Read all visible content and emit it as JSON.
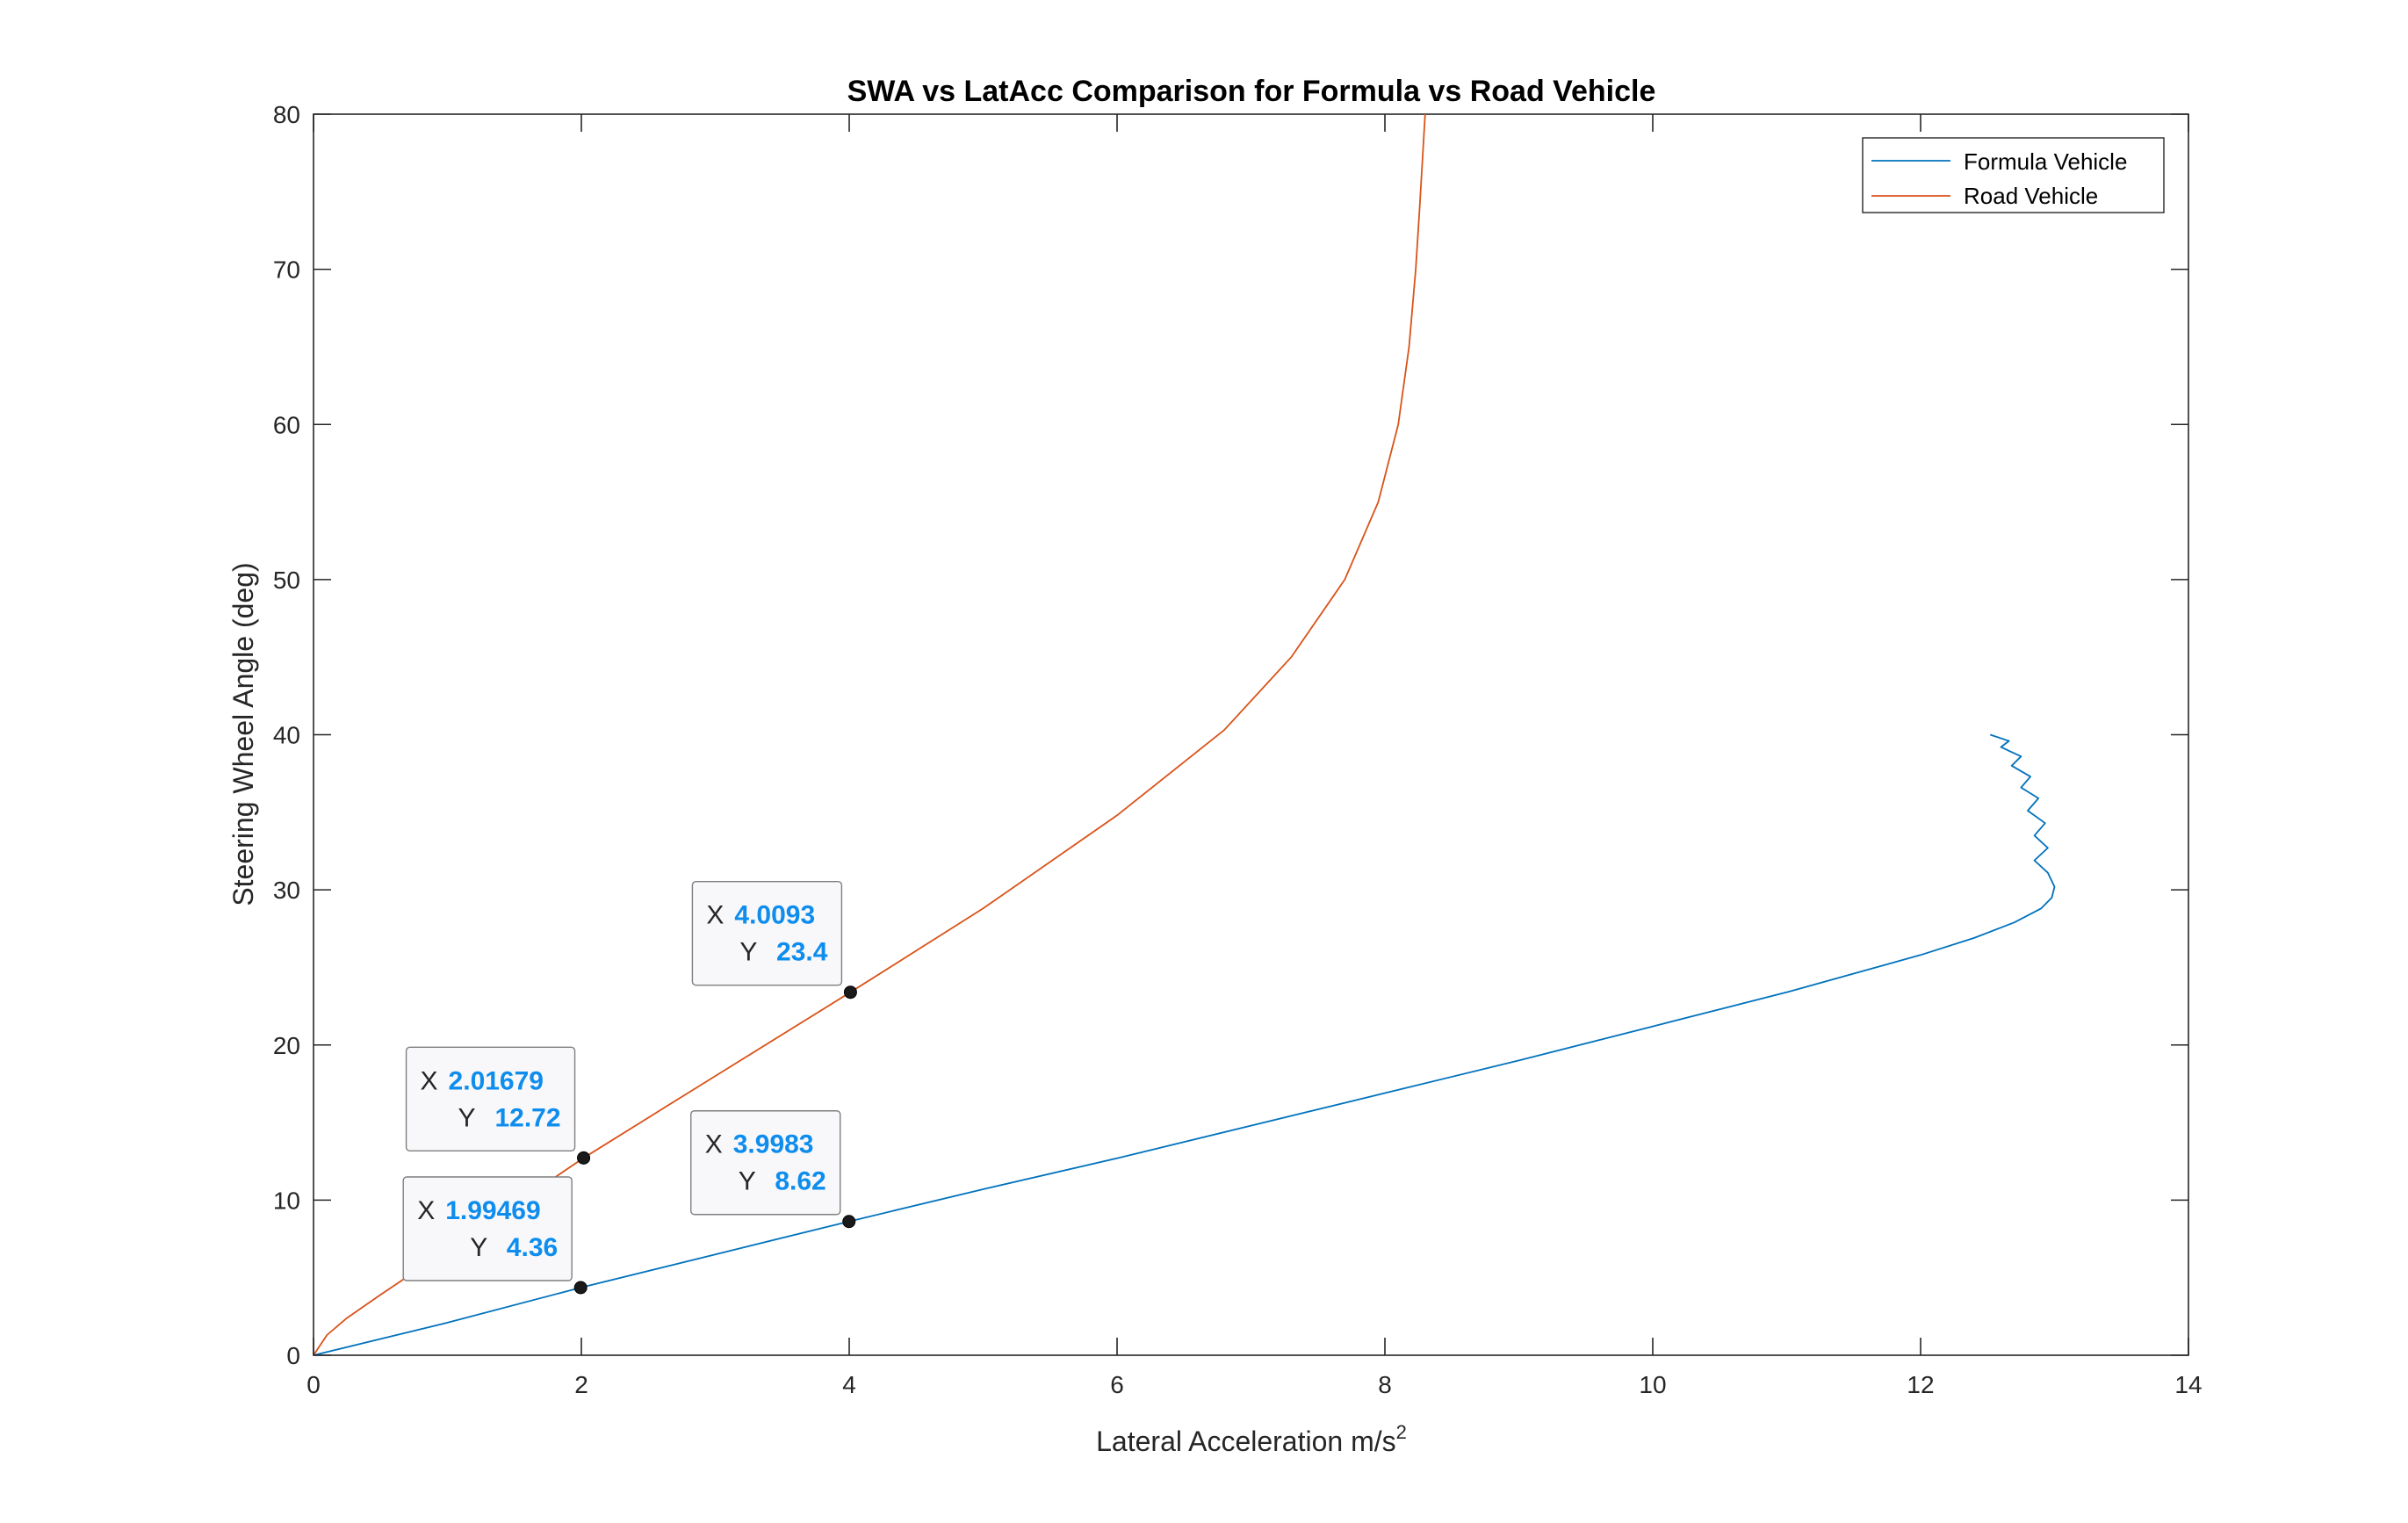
{
  "chart_data": {
    "type": "line",
    "title": "SWA vs LatAcc Comparison for Formula vs Road Vehicle",
    "xlabel": "Lateral Acceleration m/s",
    "xlabel_superscript": "2",
    "ylabel": "Steering Wheel Angle (deg)",
    "xlim": [
      0,
      14
    ],
    "ylim": [
      0,
      80
    ],
    "x_ticks": [
      0,
      2,
      4,
      6,
      8,
      10,
      12,
      14
    ],
    "y_ticks": [
      0,
      10,
      20,
      30,
      40,
      50,
      60,
      70,
      80
    ],
    "x_tick_labels": [
      "0",
      "2",
      "4",
      "6",
      "8",
      "10",
      "12",
      "14"
    ],
    "y_tick_labels": [
      "0",
      "10",
      "20",
      "30",
      "40",
      "50",
      "60",
      "70",
      "80"
    ],
    "grid": false,
    "legend_position": "top-right",
    "series": [
      {
        "name": "Formula Vehicle",
        "color": "#0072bd",
        "x": [
          0,
          1,
          1.99469,
          3,
          3.9983,
          5,
          6,
          7,
          8,
          9,
          10,
          11,
          11.5,
          12,
          12.4,
          12.7,
          12.9,
          12.98,
          13.0,
          12.95,
          12.85,
          12.95,
          12.85,
          12.93,
          12.8,
          12.88,
          12.75,
          12.82,
          12.68,
          12.75,
          12.6,
          12.66,
          12.52
        ],
        "y": [
          0,
          2.1,
          4.36,
          6.5,
          8.62,
          10.7,
          12.7,
          14.8,
          16.9,
          19.0,
          21.2,
          23.4,
          24.6,
          25.8,
          26.9,
          27.9,
          28.8,
          29.5,
          30.2,
          31.1,
          31.9,
          32.7,
          33.5,
          34.3,
          35.1,
          35.9,
          36.6,
          37.3,
          38.0,
          38.6,
          39.2,
          39.6,
          40.0
        ]
      },
      {
        "name": "Road Vehicle",
        "color": "#d95319",
        "x": [
          0,
          0.1,
          0.25,
          0.5,
          1.0,
          1.5,
          2.01679,
          3.0,
          4.0093,
          5.0,
          6.0,
          6.8,
          7.3,
          7.7,
          7.95,
          8.1,
          8.18,
          8.23,
          8.26,
          8.28,
          8.3
        ],
        "y": [
          0,
          1.3,
          2.4,
          3.9,
          6.8,
          9.7,
          12.72,
          18.0,
          23.4,
          28.8,
          34.8,
          40.3,
          45.0,
          50.0,
          55.0,
          60.0,
          65.0,
          70.0,
          74.0,
          77.0,
          80.0
        ]
      }
    ],
    "datatips": [
      {
        "x_label": "X",
        "y_label": "Y",
        "x": "1.99469",
        "y": "4.36",
        "xv": 1.99469,
        "yv": 4.36
      },
      {
        "x_label": "X",
        "y_label": "Y",
        "x": "2.01679",
        "y": "12.72",
        "xv": 2.01679,
        "yv": 12.72
      },
      {
        "x_label": "X",
        "y_label": "Y",
        "x": "3.9983",
        "y": "8.62",
        "xv": 3.9983,
        "yv": 8.62
      },
      {
        "x_label": "X",
        "y_label": "Y",
        "x": "4.0093",
        "y": "23.4",
        "xv": 4.0093,
        "yv": 23.4
      }
    ]
  }
}
